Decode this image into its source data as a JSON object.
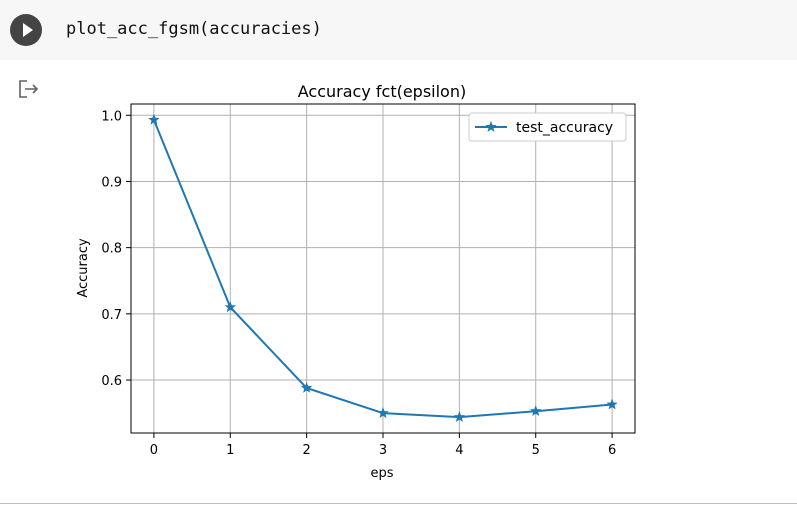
{
  "code_cell": {
    "code": "plot_acc_fgsm(accuracies)",
    "run_icon": "play-icon"
  },
  "output": {
    "icon": "output-redirect-icon"
  },
  "chart_data": {
    "type": "line",
    "title": "Accuracy fct(epsilon)",
    "xlabel": "eps",
    "ylabel": "Accuracy",
    "x": [
      0,
      1,
      2,
      3,
      4,
      5,
      6
    ],
    "series": [
      {
        "name": "test_accuracy",
        "values": [
          0.993,
          0.71,
          0.588,
          0.55,
          0.544,
          0.553,
          0.563
        ],
        "color": "#1f77b4",
        "marker": "star"
      }
    ],
    "xticks": [
      "0",
      "1",
      "2",
      "3",
      "4",
      "5",
      "6"
    ],
    "yticks": [
      "0.6",
      "0.7",
      "0.8",
      "0.9",
      "1.0"
    ],
    "xlim": [
      -0.3,
      6.3
    ],
    "ylim": [
      0.52,
      1.017
    ],
    "grid": true,
    "legend_position": "top-right"
  }
}
